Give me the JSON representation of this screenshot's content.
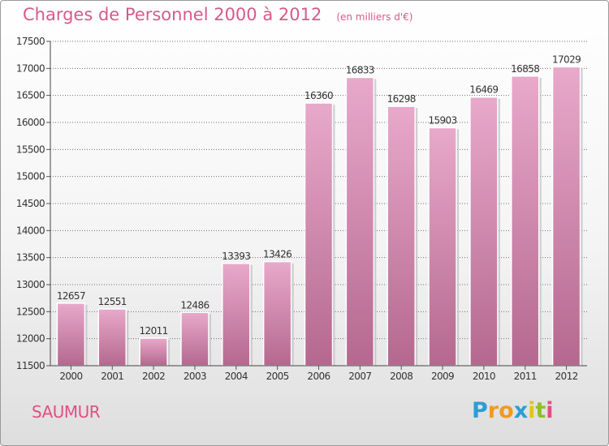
{
  "title": "Charges de Personnel 2000 à 2012",
  "subtitle": "(en milliers d'€)",
  "location": "SAUMUR",
  "brand": {
    "name": "Proxiti",
    "letters": [
      "P",
      "r",
      "o",
      "x",
      "i",
      "t",
      "i"
    ],
    "letter_colors": [
      "#2a9fd6",
      "#f29a1d",
      "#f29a1d",
      "#2a9fd6",
      "#e2c51a",
      "#8dc21f",
      "#e24e82"
    ]
  },
  "colors": {
    "title": "#d65a8a",
    "bar_top": "#e8a9cb",
    "bar_bottom": "#b5688f",
    "gridline": "#6f6f6f"
  },
  "chart_data": {
    "type": "bar",
    "categories": [
      "2000",
      "2001",
      "2002",
      "2003",
      "2004",
      "2005",
      "2006",
      "2007",
      "2008",
      "2009",
      "2010",
      "2011",
      "2012"
    ],
    "values": [
      12657,
      12551,
      12011,
      12486,
      13393,
      13426,
      16360,
      16833,
      16298,
      15903,
      16469,
      16858,
      17029
    ],
    "ylim": [
      11500,
      17500
    ],
    "yticks": [
      11500,
      12000,
      12500,
      13000,
      13500,
      14000,
      14500,
      15000,
      15500,
      16000,
      16500,
      17000,
      17500
    ],
    "grid": true
  }
}
